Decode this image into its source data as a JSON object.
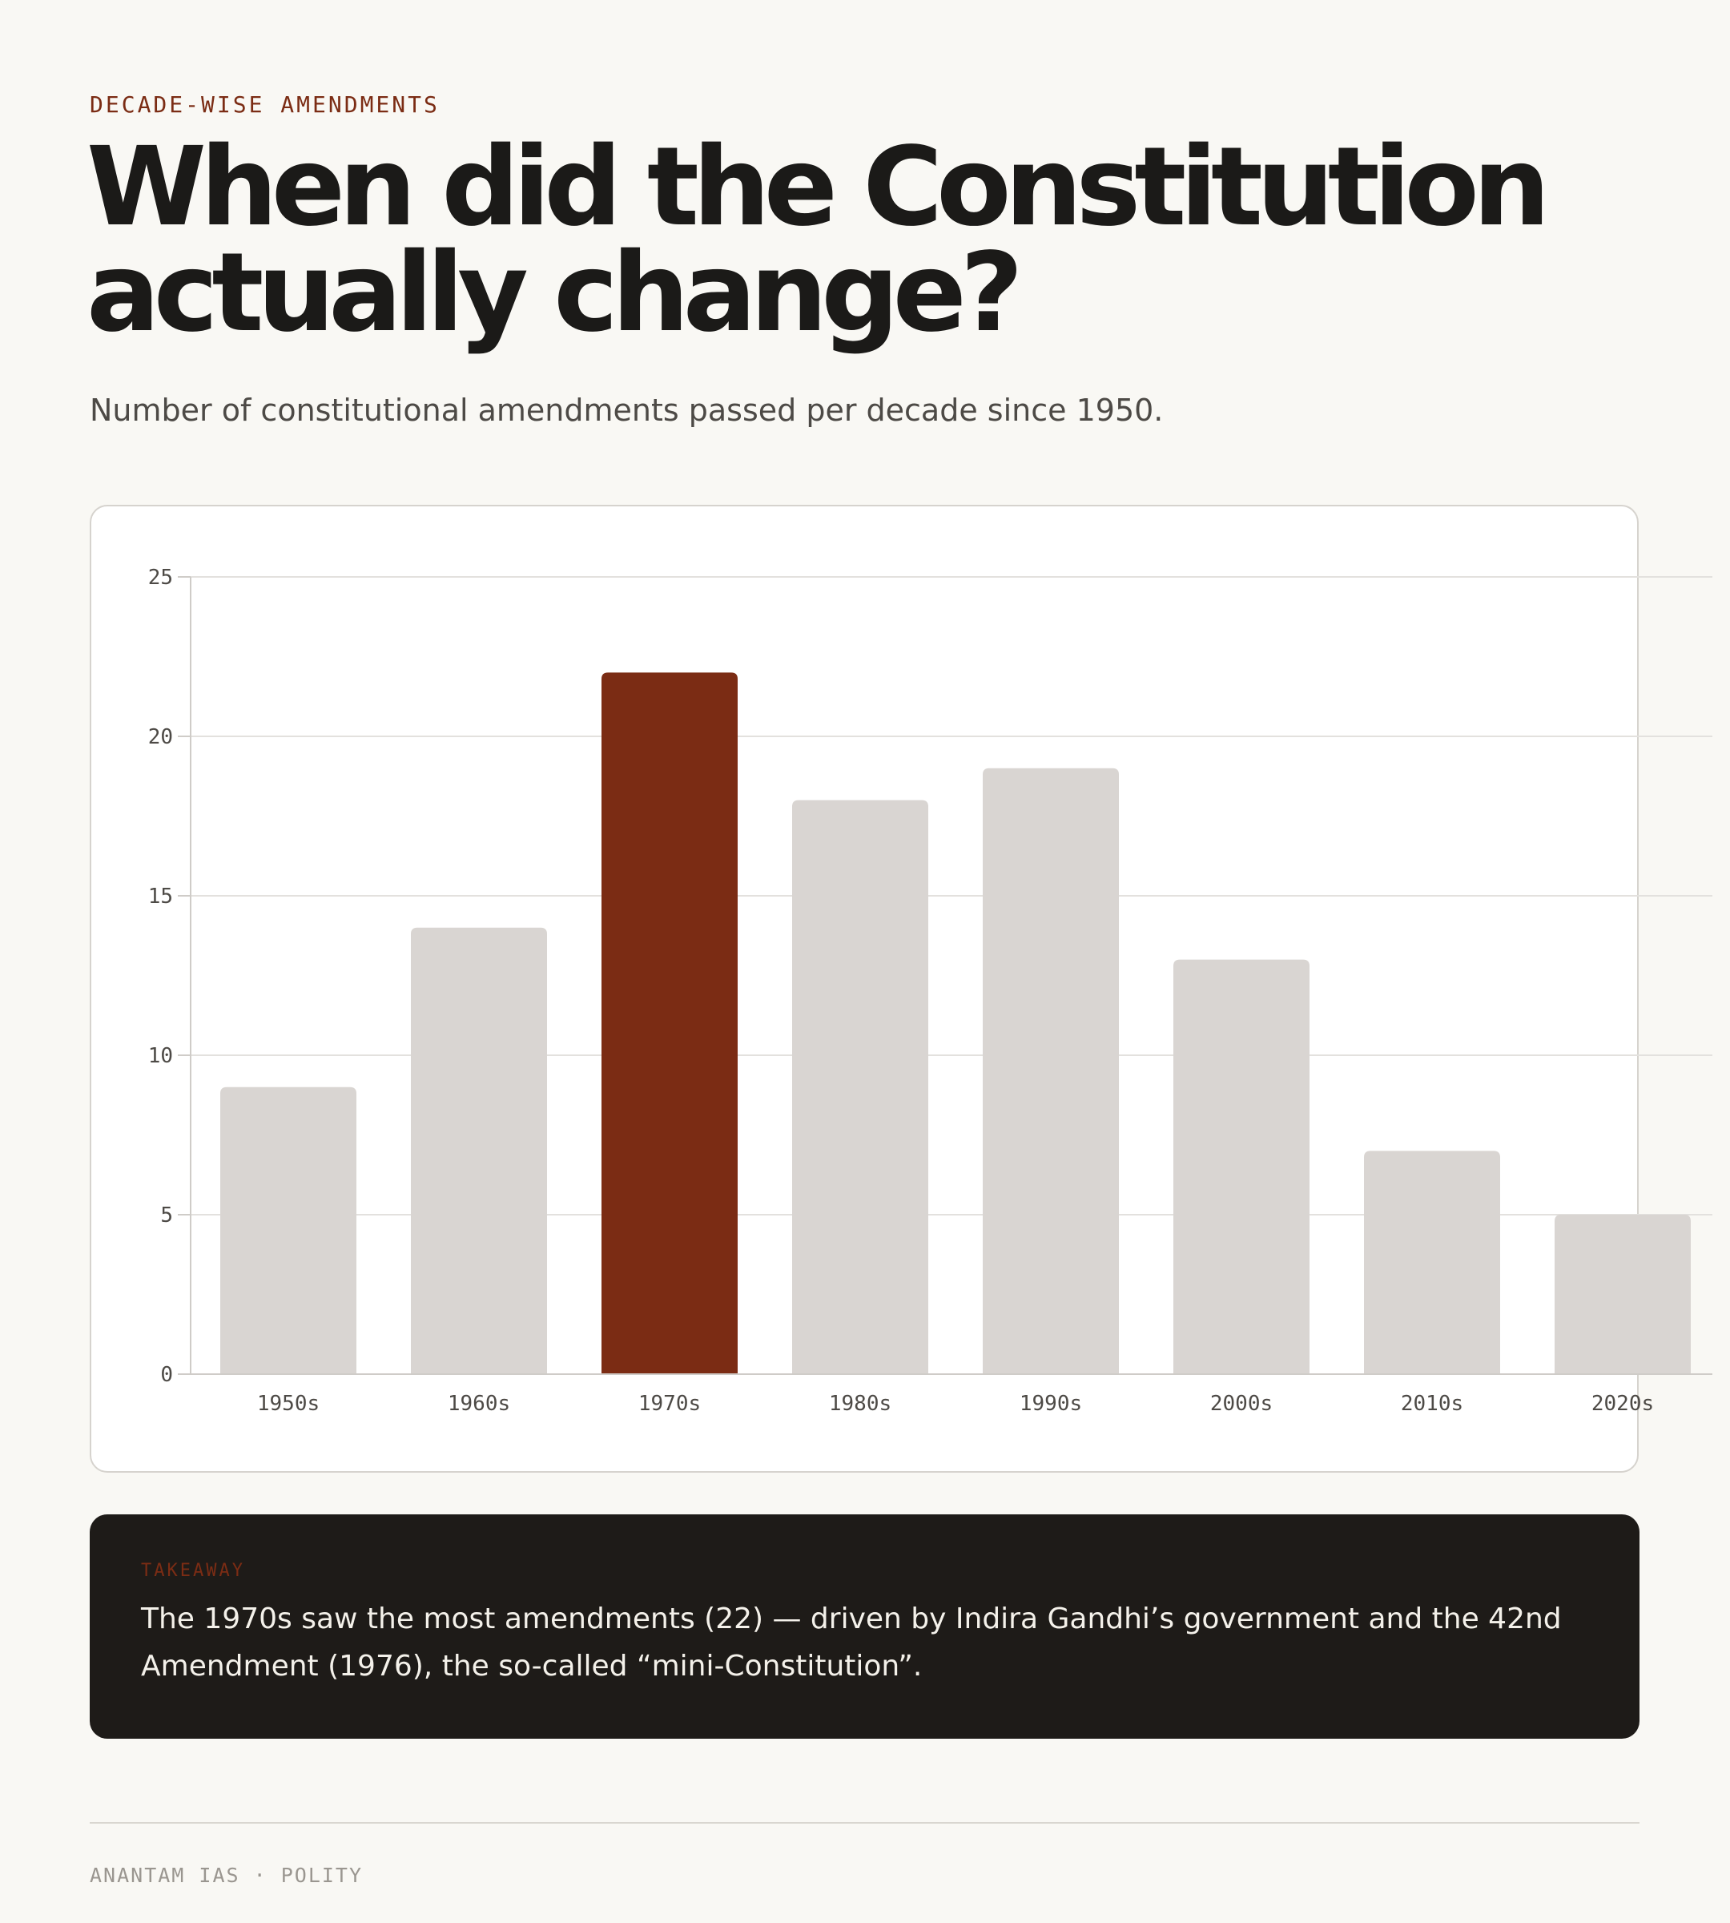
{
  "eyebrow": "DECADE-WISE AMENDMENTS",
  "title": "When did the Constitution actually change?",
  "subtitle": "Number of constitutional amendments passed per decade since 1950.",
  "chart_data": {
    "type": "bar",
    "categories": [
      "1950s",
      "1960s",
      "1970s",
      "1980s",
      "1990s",
      "2000s",
      "2010s",
      "2020s"
    ],
    "values": [
      9,
      14,
      22,
      18,
      19,
      13,
      7,
      5
    ],
    "ylim": [
      0,
      25
    ],
    "yticks": [
      0,
      5,
      10,
      15,
      20,
      25
    ],
    "highlight_category": "1970s",
    "grid": true,
    "xlabel": "",
    "ylabel": "",
    "colors": {
      "bar": "#d9d5d2",
      "highlight": "#7b2c14",
      "grid": "#e3e1de",
      "axis": "#cfccc8",
      "tick_label": "#4d4a46"
    }
  },
  "takeaway": {
    "label": "TAKEAWAY",
    "text": "The 1970s saw the most amendments (22) — driven by Indira Gandhi’s government and the 42nd Amendment (1976), the so-called “mini-Constitution”."
  },
  "footer": "ANANTAM IAS · POLITY"
}
